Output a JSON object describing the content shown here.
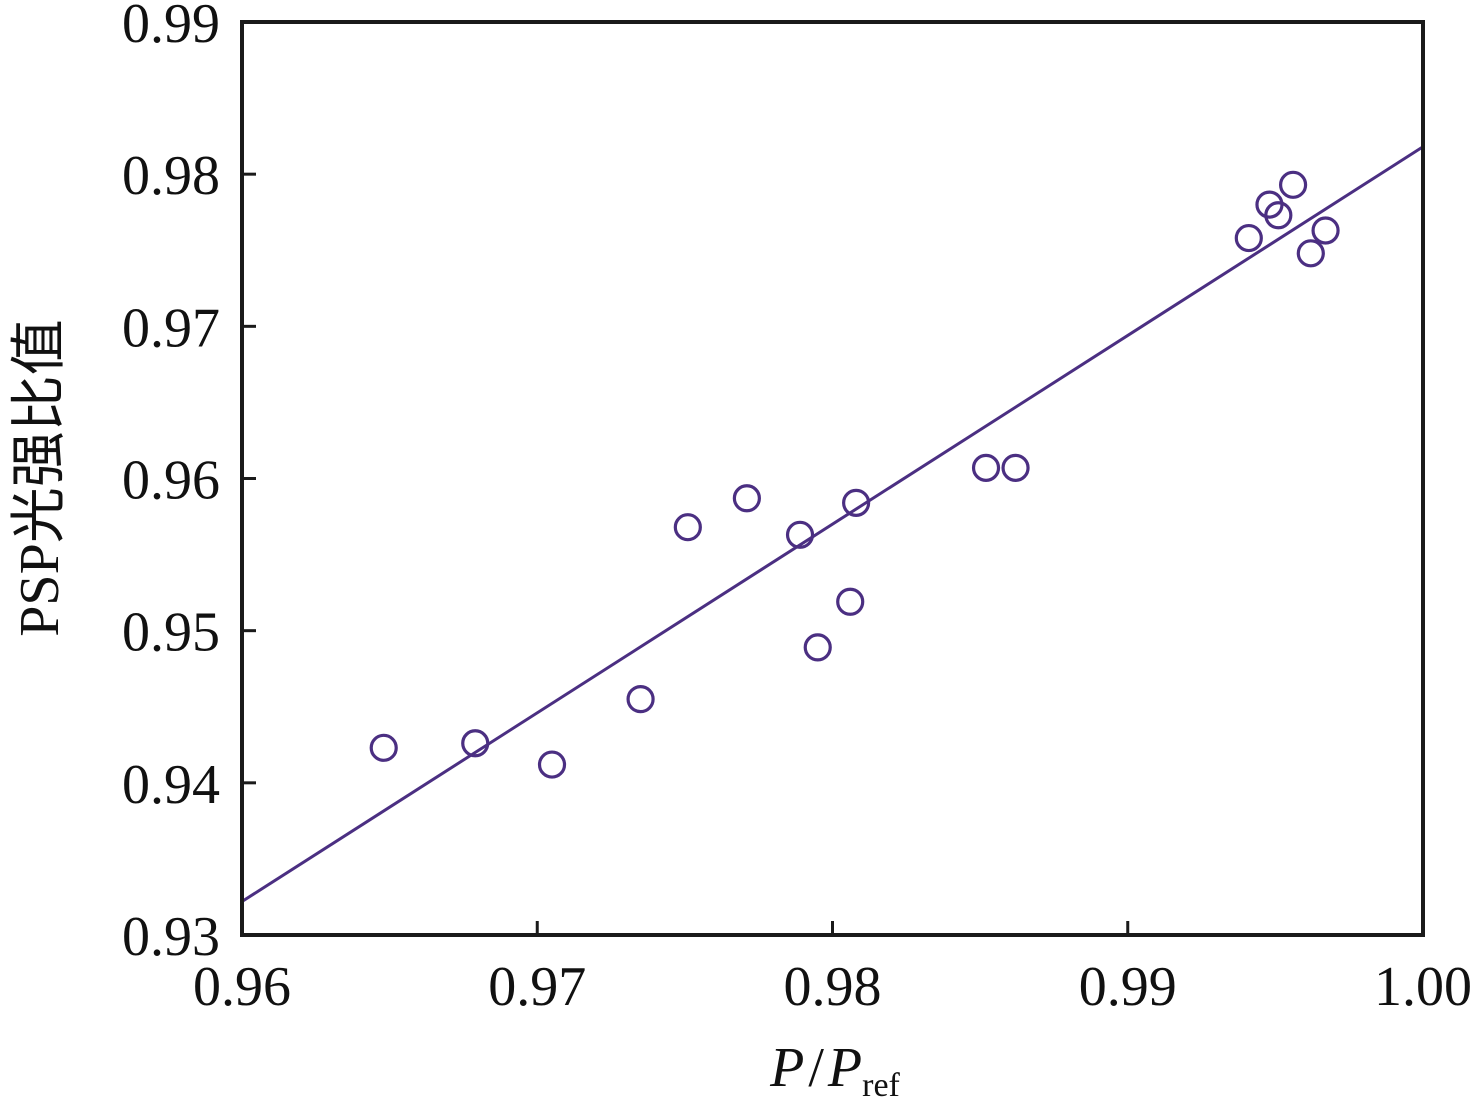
{
  "chart_data": {
    "type": "scatter",
    "title": "",
    "xlabel": {
      "main": "P",
      "slash": "/",
      "main2": "P",
      "sub": "ref"
    },
    "ylabel": "PSP光强比值",
    "xlim": [
      0.96,
      1.0
    ],
    "ylim": [
      0.93,
      0.99
    ],
    "x_ticks": [
      0.96,
      0.97,
      0.98,
      0.99,
      1.0
    ],
    "x_tick_labels": [
      "0.96",
      "0.97",
      "0.98",
      "0.99",
      "1.00"
    ],
    "y_ticks": [
      0.93,
      0.94,
      0.95,
      0.96,
      0.97,
      0.98,
      0.99
    ],
    "y_tick_labels": [
      "0.93",
      "0.94",
      "0.95",
      "0.96",
      "0.97",
      "0.98",
      "0.99"
    ],
    "grid": false,
    "legend": "none",
    "series": [
      {
        "kind": "points",
        "marker": "open-circle",
        "points": [
          {
            "x": 0.9648,
            "y": 0.9423
          },
          {
            "x": 0.9679,
            "y": 0.9426
          },
          {
            "x": 0.9705,
            "y": 0.9412
          },
          {
            "x": 0.9735,
            "y": 0.9455
          },
          {
            "x": 0.9751,
            "y": 0.9568
          },
          {
            "x": 0.9771,
            "y": 0.9587
          },
          {
            "x": 0.9789,
            "y": 0.9563
          },
          {
            "x": 0.9795,
            "y": 0.9489
          },
          {
            "x": 0.9806,
            "y": 0.9519
          },
          {
            "x": 0.9808,
            "y": 0.9584
          },
          {
            "x": 0.9852,
            "y": 0.9607
          },
          {
            "x": 0.9862,
            "y": 0.9607
          },
          {
            "x": 0.9941,
            "y": 0.9758
          },
          {
            "x": 0.9948,
            "y": 0.978
          },
          {
            "x": 0.9951,
            "y": 0.9773
          },
          {
            "x": 0.9956,
            "y": 0.9793
          },
          {
            "x": 0.9962,
            "y": 0.9748
          },
          {
            "x": 0.9967,
            "y": 0.9763
          }
        ]
      },
      {
        "kind": "fit-line",
        "points": [
          {
            "x": 0.96,
            "y": 0.9322
          },
          {
            "x": 1.0,
            "y": 0.9818
          }
        ]
      }
    ],
    "colors": {
      "marker": "#4b2f82",
      "line": "#4b2f82",
      "axis": "#1a1a1a"
    }
  }
}
